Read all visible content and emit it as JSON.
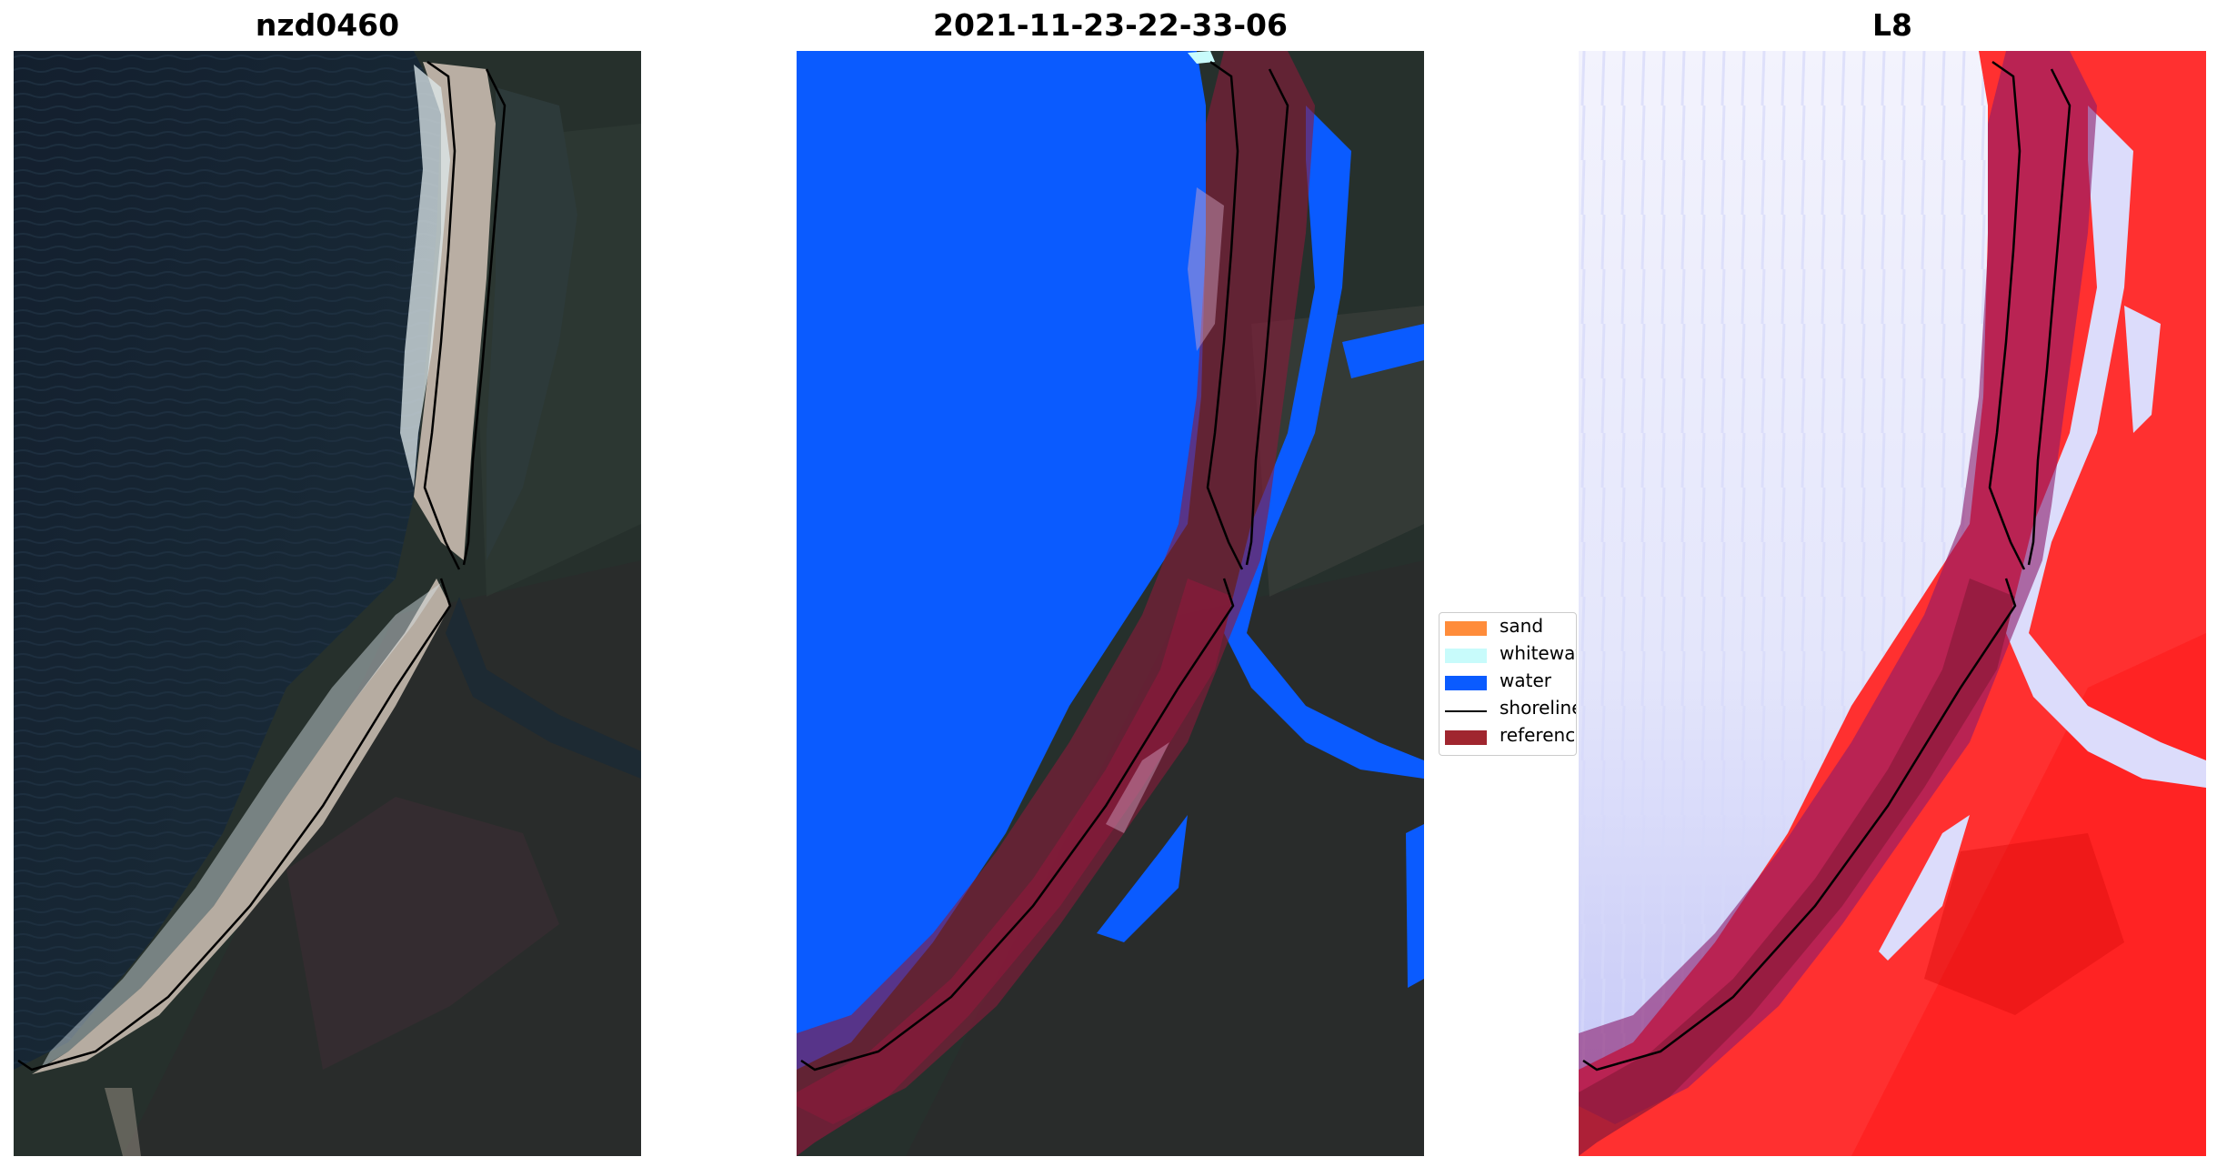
{
  "panels": [
    {
      "title": "nzd0460"
    },
    {
      "title": "2021-11-23-22-33-06"
    },
    {
      "title": "L8"
    }
  ],
  "legend": {
    "items": [
      {
        "label": "sand",
        "color": "#ff8c3a"
      },
      {
        "label": "whitewater",
        "color": "#c8fbfb"
      },
      {
        "label": "water",
        "color": "#0a5bff"
      },
      {
        "label": "shoreline",
        "color": "#000000"
      },
      {
        "label": "reference",
        "color": "#a0262f"
      }
    ]
  },
  "colors": {
    "ocean_dark": "#152232",
    "sand": "#b9aea3",
    "vegetation": "#24302b",
    "water_class": "#0a5bff",
    "reference_band": "#8a1a3a",
    "index_low": "#e8eafc",
    "index_high": "#ff2020"
  }
}
